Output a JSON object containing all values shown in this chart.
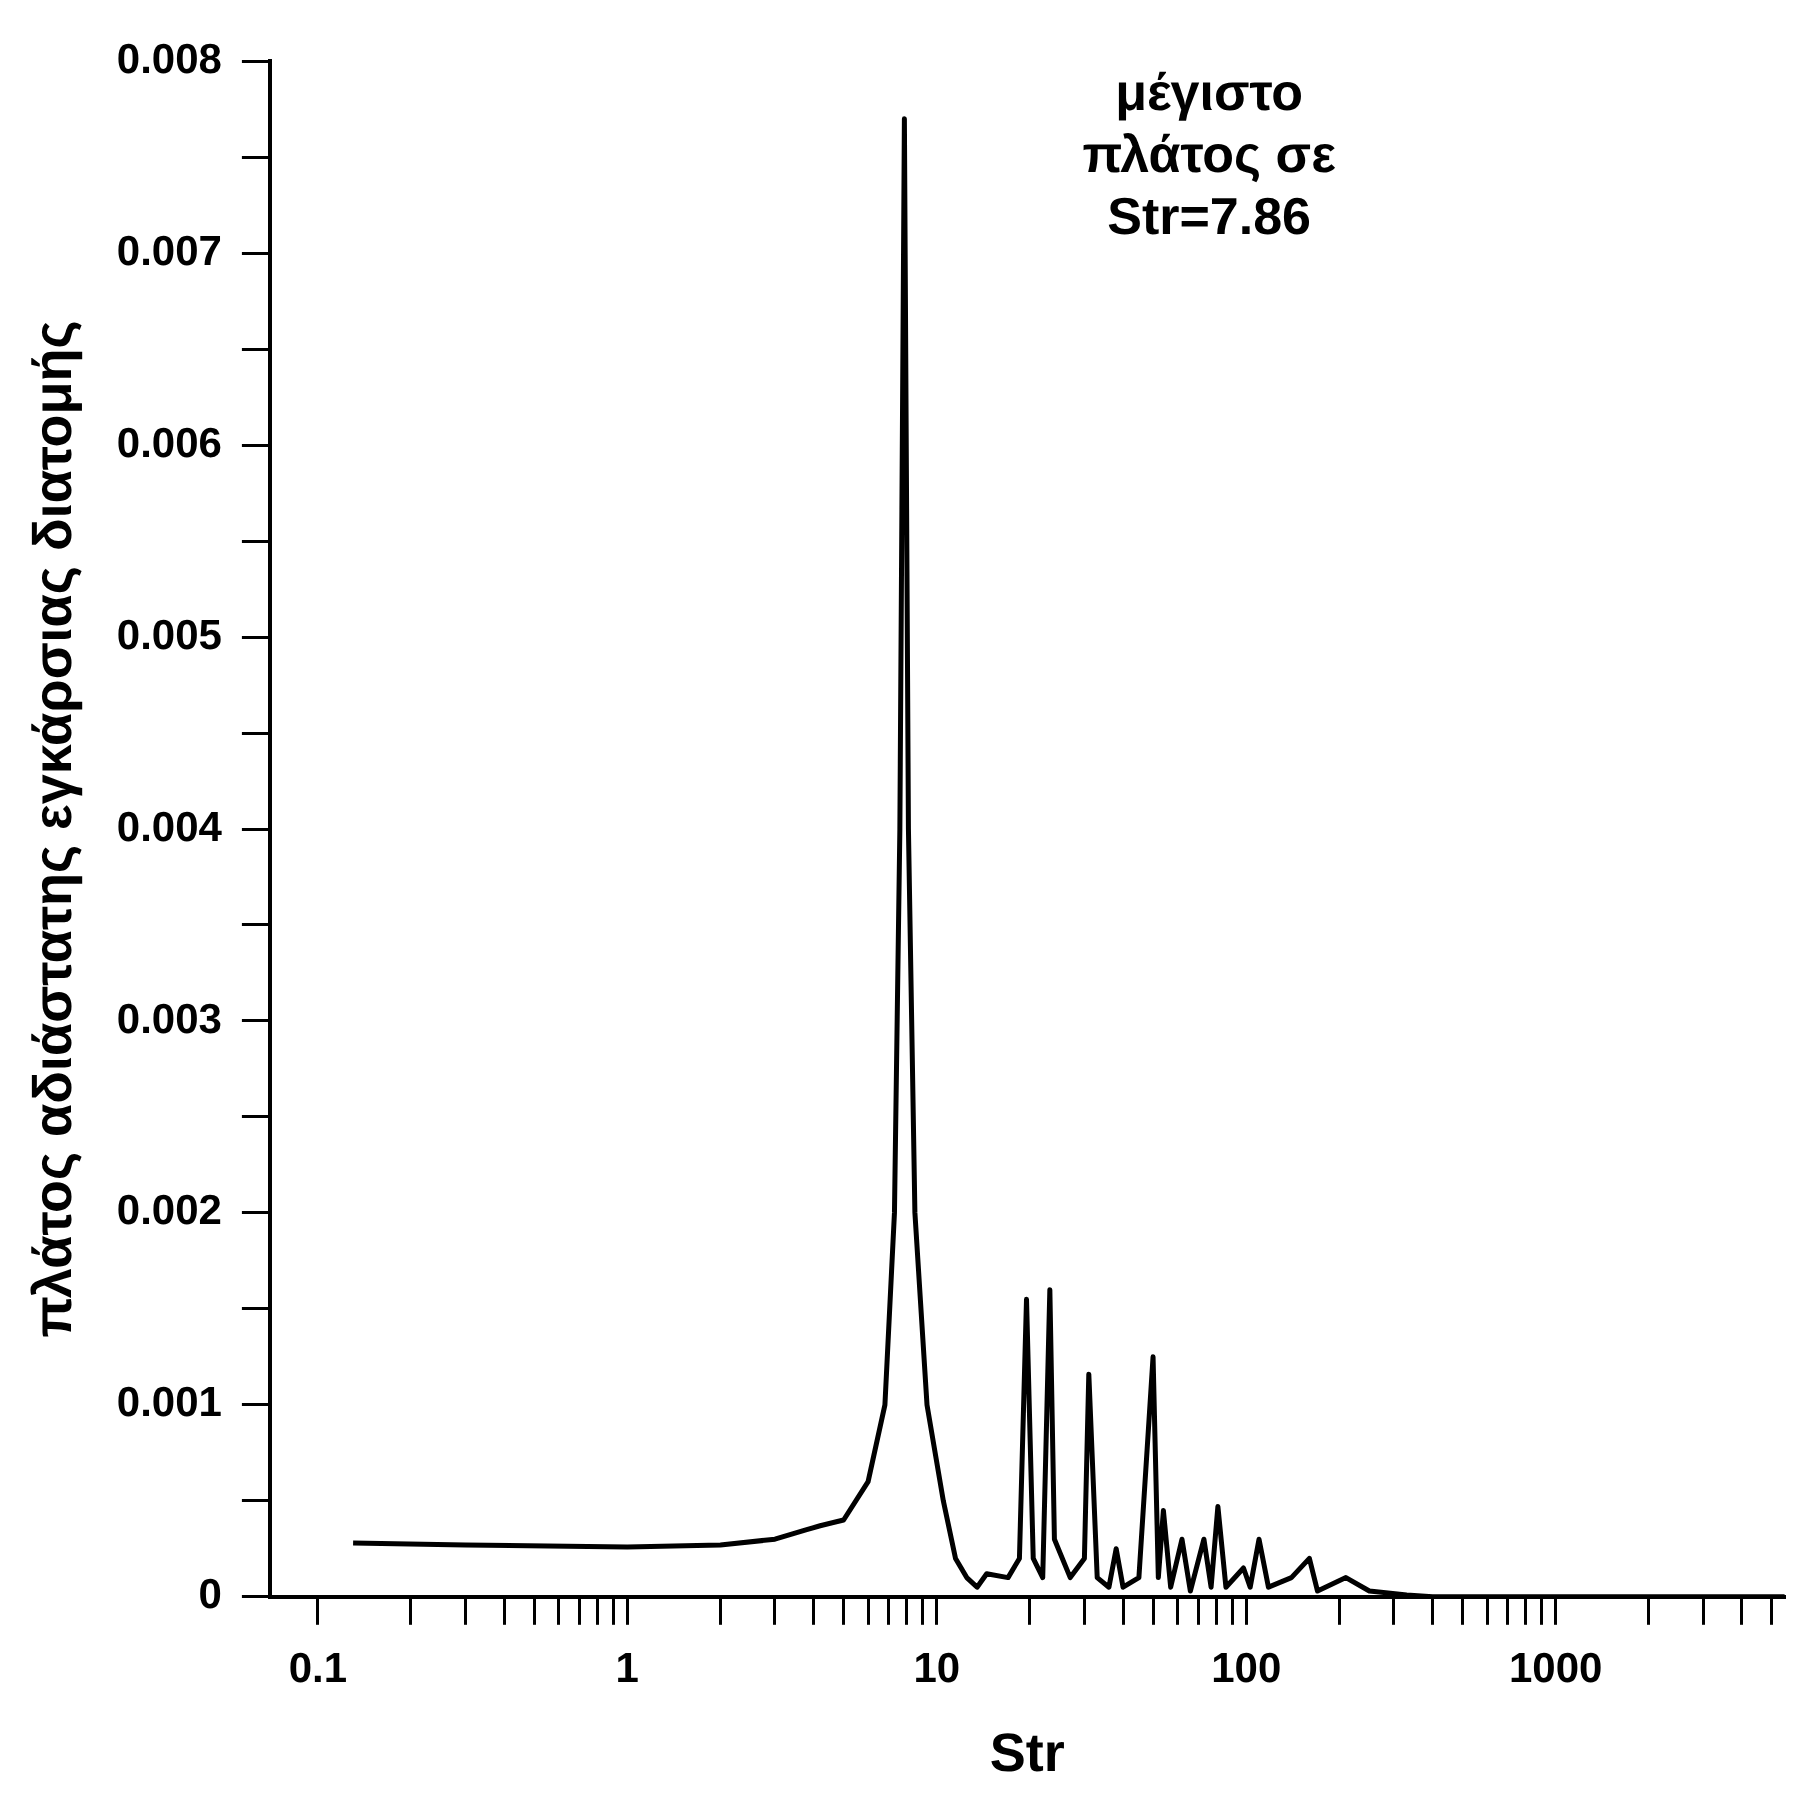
{
  "chart_data": {
    "type": "line",
    "xlabel": "Str",
    "ylabel": "πλάτος αδιάστατης εγκάρσιας διατομής",
    "annotations": [
      "μέγιστο\nπλάτος σε\nStr=7.86"
    ],
    "log": "x",
    "grid": false,
    "legend": false,
    "marker": "none",
    "line_style": "solid",
    "xlim": [
      0.07,
      5500
    ],
    "xticks": [
      0.1,
      {
        "value": 0.2,
        "label": null
      },
      {
        "value": 0.3,
        "label": null
      },
      {
        "value": 0.4,
        "label": null
      },
      {
        "value": 0.5,
        "label": null
      },
      {
        "value": 0.6,
        "label": null
      },
      {
        "value": 0.7,
        "label": null
      },
      {
        "value": 0.8,
        "label": null
      },
      {
        "value": 0.9,
        "label": null
      },
      1,
      {
        "value": 2,
        "label": null
      },
      {
        "value": 3,
        "label": null
      },
      {
        "value": 4,
        "label": null
      },
      {
        "value": 5,
        "label": null
      },
      {
        "value": 6,
        "label": null
      },
      {
        "value": 7,
        "label": null
      },
      {
        "value": 8,
        "label": null
      },
      {
        "value": 9,
        "label": null
      },
      10,
      {
        "value": 20,
        "label": null
      },
      {
        "value": 30,
        "label": null
      },
      {
        "value": 40,
        "label": null
      },
      {
        "value": 50,
        "label": null
      },
      {
        "value": 60,
        "label": null
      },
      {
        "value": 70,
        "label": null
      },
      {
        "value": 80,
        "label": null
      },
      {
        "value": 90,
        "label": null
      },
      100,
      {
        "value": 200,
        "label": null
      },
      {
        "value": 300,
        "label": null
      },
      {
        "value": 400,
        "label": null
      },
      {
        "value": 500,
        "label": null
      },
      {
        "value": 600,
        "label": null
      },
      {
        "value": 700,
        "label": null
      },
      {
        "value": 800,
        "label": null
      },
      {
        "value": 900,
        "label": null
      },
      1000,
      {
        "value": 2000,
        "label": null
      },
      {
        "value": 3000,
        "label": null
      },
      {
        "value": 4000,
        "label": null
      },
      {
        "value": 5000,
        "label": null
      }
    ],
    "ylim": [
      0,
      0.008
    ],
    "yticks": [
      0,
      {
        "value": 0.0005,
        "label": null
      },
      0.001,
      {
        "value": 0.0015,
        "label": null
      },
      0.002,
      {
        "value": 0.0025,
        "label": null
      },
      0.003,
      {
        "value": 0.0035,
        "label": null
      },
      0.004,
      {
        "value": 0.0045,
        "label": null
      },
      0.005,
      {
        "value": 0.0055,
        "label": null
      },
      0.006,
      {
        "value": 0.0065,
        "label": null
      },
      0.007,
      {
        "value": 0.0075,
        "label": null
      },
      0.008
    ],
    "series": [
      {
        "color": "#000000",
        "x": [
          0.13,
          0.3,
          1,
          2,
          3,
          3.8,
          4.2,
          5,
          6,
          6.8,
          7.3,
          7.6,
          7.86,
          8.1,
          8.5,
          9.3,
          10.5,
          11.5,
          12.5,
          13.5,
          14.5,
          17,
          18.5,
          19.5,
          20.5,
          22,
          23.2,
          24,
          27,
          30,
          31,
          33,
          36,
          38,
          40,
          45,
          50,
          52,
          54,
          57,
          62,
          66,
          73,
          77,
          81,
          86,
          98,
          103,
          110,
          118,
          140,
          160,
          170,
          210,
          250,
          330,
          400,
          5500
        ],
        "values": [
          0.00028,
          0.00027,
          0.00026,
          0.00027,
          0.0003,
          0.00035,
          0.00037,
          0.0004,
          0.0006,
          0.001,
          0.002,
          0.004,
          0.0077,
          0.004,
          0.002,
          0.001,
          0.0005,
          0.0002,
          0.0001,
          5e-05,
          0.00012,
          0.0001,
          0.0002,
          0.00155,
          0.0002,
          0.0001,
          0.0016,
          0.0003,
          0.0001,
          0.0002,
          0.00116,
          0.0001,
          5e-05,
          0.00025,
          5e-05,
          0.0001,
          0.00125,
          0.0001,
          0.00045,
          5e-05,
          0.0003,
          3e-05,
          0.0003,
          5e-05,
          0.00047,
          5e-05,
          0.00015,
          5e-05,
          0.0003,
          5e-05,
          0.0001,
          0.0002,
          3e-05,
          0.0001,
          3e-05,
          1e-05,
          0,
          0
        ]
      }
    ]
  }
}
